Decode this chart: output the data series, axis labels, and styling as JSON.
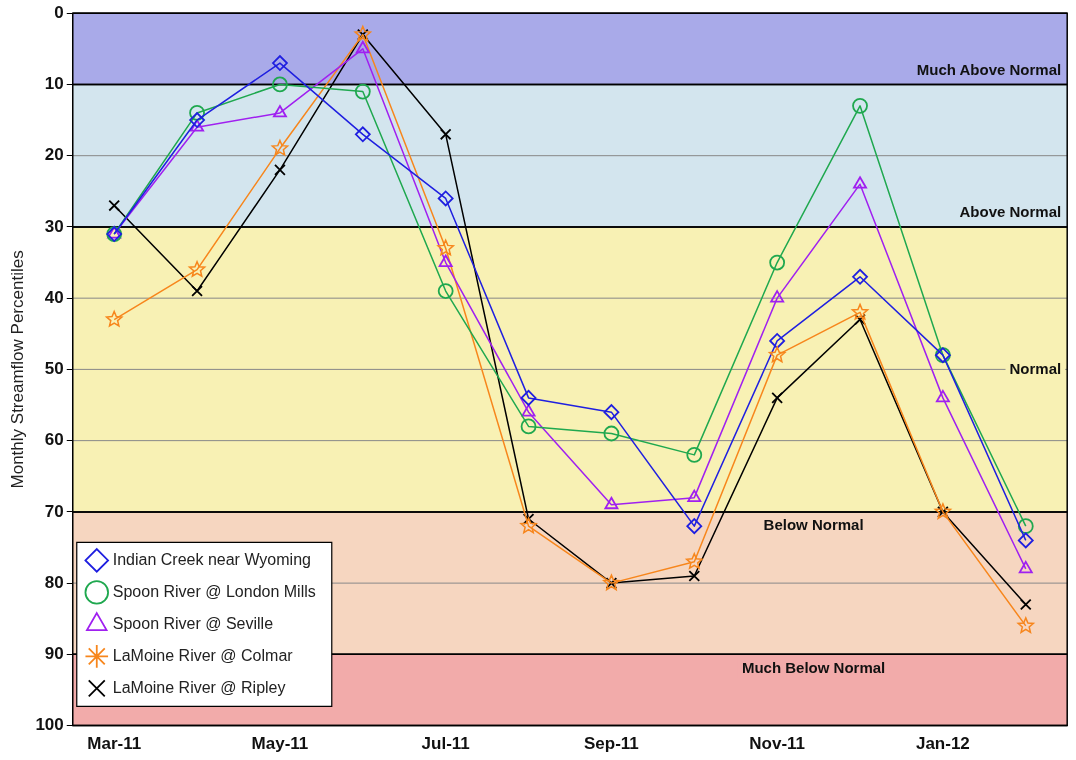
{
  "chart_data": {
    "type": "line",
    "ylabel": "Monthly Streamflow Percentiles",
    "categories": [
      "Mar-11",
      null,
      "May-11",
      null,
      "Jul-11",
      null,
      "Sep-11",
      null,
      "Nov-11",
      null,
      "Jan-12",
      null
    ],
    "ylim": [
      100,
      0
    ],
    "yticks": [
      0,
      10,
      20,
      30,
      40,
      50,
      60,
      70,
      80,
      90,
      100
    ],
    "grid": "y",
    "legend": "bottom left",
    "line_style": "solid",
    "bands": [
      {
        "axis": "y",
        "from": 0,
        "to": 10,
        "label": "Much Above Normal",
        "color": "#a9aae9"
      },
      {
        "axis": "y",
        "from": 10,
        "to": 30,
        "label": "Above Normal",
        "color": "#d3e5ee"
      },
      {
        "axis": "y",
        "from": 30,
        "to": 70,
        "label": "Normal",
        "color": "#f8f1b4"
      },
      {
        "axis": "y",
        "from": 70,
        "to": 90,
        "label": "Below Normal",
        "color": "#f6d6c0"
      },
      {
        "axis": "y",
        "from": 90,
        "to": 100,
        "label": "Much Below Normal",
        "color": "#f2abaa"
      }
    ],
    "series": [
      {
        "name": "Indian Creek near Wyoming",
        "color": "#1f1fe0",
        "marker": "diamond",
        "values": [
          31,
          15,
          7,
          17,
          26,
          54,
          56,
          72,
          46,
          37,
          48,
          74
        ]
      },
      {
        "name": "Spoon River @ London Mills",
        "color": "#1fa84f",
        "marker": "circle",
        "values": [
          31,
          14,
          10,
          11,
          39,
          58,
          59,
          62,
          35,
          13,
          48,
          72
        ]
      },
      {
        "name": "Spoon River @ Seville",
        "color": "#a020f0",
        "marker": "triangle",
        "values": [
          31,
          16,
          14,
          5,
          35,
          56,
          69,
          68,
          40,
          24,
          54,
          78
        ]
      },
      {
        "name": "LaMoine River @ Colmar",
        "color": "#f7861c",
        "marker": "star",
        "values": [
          43,
          36,
          19,
          3,
          33,
          72,
          80,
          77,
          48,
          42,
          70,
          86
        ]
      },
      {
        "name": "LaMoine River @ Ripley",
        "color": "#000000",
        "marker": "cross",
        "values": [
          27,
          39,
          22,
          3,
          17,
          71,
          80,
          79,
          54,
          43,
          70,
          83
        ]
      }
    ]
  }
}
